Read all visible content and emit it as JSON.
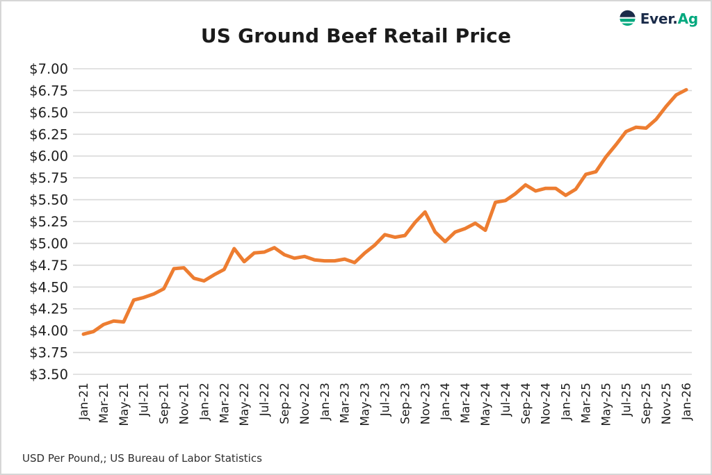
{
  "header": {
    "title": "US Ground Beef Retail Price",
    "logo": {
      "brand_primary": "Ever.",
      "brand_secondary": "Ag"
    }
  },
  "footer": {
    "source_note": "USD Per Pound,; US Bureau of Labor Statistics"
  },
  "colors": {
    "line": "#ED7D31",
    "grid": "#D8D8D8",
    "text": "#1D1D1D",
    "logo_navy": "#1A2B49",
    "logo_green": "#00A87E"
  },
  "chart_data": {
    "type": "line",
    "title": "US Ground Beef Retail Price",
    "unit": "USD per pound",
    "source": "US Bureau of Labor Statistics",
    "series_name": "US ground beef retail price",
    "grid": "horizontal",
    "legend": "none",
    "ylim": [
      3.5,
      7.0
    ],
    "y_step": 0.25,
    "y_tick_labels": [
      "$7.00",
      "$6.75",
      "$6.50",
      "$6.25",
      "$6.00",
      "$5.75",
      "$5.50",
      "$5.25",
      "$5.00",
      "$4.75",
      "$4.50",
      "$4.25",
      "$4.00",
      "$3.75",
      "$3.50"
    ],
    "x_tick_labels": [
      "Jan-21",
      "Mar-21",
      "May-21",
      "Jul-21",
      "Sep-21",
      "Nov-21",
      "Jan-22",
      "Mar-22",
      "May-22",
      "Jul-22",
      "Sep-22",
      "Nov-22",
      "Jan-23",
      "Mar-23",
      "May-23",
      "Jul-23",
      "Sep-23",
      "Nov-23",
      "Jan-24",
      "Mar-24",
      "May-24",
      "Jul-24",
      "Sep-24",
      "Nov-24",
      "Jan-25",
      "Mar-25",
      "May-25",
      "Jul-25",
      "Sep-25",
      "Nov-25",
      "Jan-26"
    ],
    "x": [
      "Jan-21",
      "Feb-21",
      "Mar-21",
      "Apr-21",
      "May-21",
      "Jun-21",
      "Jul-21",
      "Aug-21",
      "Sep-21",
      "Oct-21",
      "Nov-21",
      "Dec-21",
      "Jan-22",
      "Feb-22",
      "Mar-22",
      "Apr-22",
      "May-22",
      "Jun-22",
      "Jul-22",
      "Aug-22",
      "Sep-22",
      "Oct-22",
      "Nov-22",
      "Dec-22",
      "Jan-23",
      "Feb-23",
      "Mar-23",
      "Apr-23",
      "May-23",
      "Jun-23",
      "Jul-23",
      "Aug-23",
      "Sep-23",
      "Oct-23",
      "Nov-23",
      "Dec-23",
      "Jan-24",
      "Feb-24",
      "Mar-24",
      "Apr-24",
      "May-24",
      "Jun-24",
      "Jul-24",
      "Aug-24",
      "Sep-24",
      "Oct-24",
      "Nov-24",
      "Dec-24",
      "Jan-25",
      "Feb-25",
      "Mar-25",
      "Apr-25",
      "May-25",
      "Jun-25",
      "Jul-25",
      "Aug-25",
      "Sep-25",
      "Oct-25",
      "Nov-25",
      "Dec-25",
      "Jan-26"
    ],
    "values": [
      3.96,
      3.99,
      4.07,
      4.11,
      4.1,
      4.35,
      4.38,
      4.42,
      4.48,
      4.71,
      4.72,
      4.6,
      4.57,
      4.64,
      4.7,
      4.94,
      4.79,
      4.89,
      4.9,
      4.95,
      4.87,
      4.83,
      4.85,
      4.81,
      4.8,
      4.8,
      4.82,
      4.78,
      4.89,
      4.98,
      5.1,
      5.07,
      5.09,
      5.24,
      5.36,
      5.13,
      5.02,
      5.13,
      5.17,
      5.23,
      5.15,
      5.47,
      5.49,
      5.57,
      5.67,
      5.6,
      5.63,
      5.63,
      5.55,
      5.62,
      5.79,
      5.82,
      5.99,
      6.13,
      6.28,
      6.33,
      6.32,
      6.42,
      6.57,
      6.7,
      6.76
    ]
  }
}
